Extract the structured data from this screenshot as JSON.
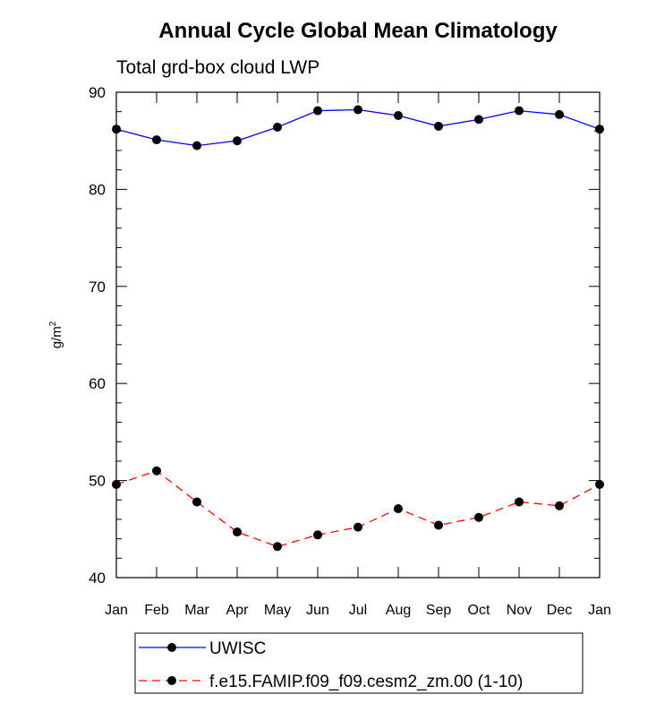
{
  "chart_data": {
    "type": "line",
    "title": "Annual Cycle Global Mean Climatology",
    "subtitle": "Total grd-box cloud LWP",
    "ylabel": "g/m",
    "ylabel_superscript": "2",
    "xlabel": "",
    "categories": [
      "Jan",
      "Feb",
      "Mar",
      "Apr",
      "May",
      "Jun",
      "Jul",
      "Aug",
      "Sep",
      "Oct",
      "Nov",
      "Dec",
      "Jan"
    ],
    "ylim": [
      40,
      90
    ],
    "yticks": [
      "40",
      "50",
      "60",
      "70",
      "80",
      "90"
    ],
    "grid": false,
    "legend_position": "bottom",
    "series": [
      {
        "name": "UWISC",
        "color": "#0000ff",
        "dash": "solid",
        "marker": "filled-circle",
        "values": [
          86.2,
          85.1,
          84.5,
          85.0,
          86.4,
          88.1,
          88.2,
          87.6,
          86.5,
          87.2,
          88.1,
          87.7,
          86.2
        ]
      },
      {
        "name": "f.e15.FAMIP.f09_f09.cesm2_zm.00 (1-10)",
        "color": "#ff0000",
        "dash": "dashed",
        "marker": "filled-circle",
        "values": [
          49.6,
          51.0,
          47.8,
          44.7,
          43.2,
          44.4,
          45.2,
          47.1,
          45.4,
          46.2,
          47.8,
          47.4,
          49.6
        ]
      }
    ]
  }
}
